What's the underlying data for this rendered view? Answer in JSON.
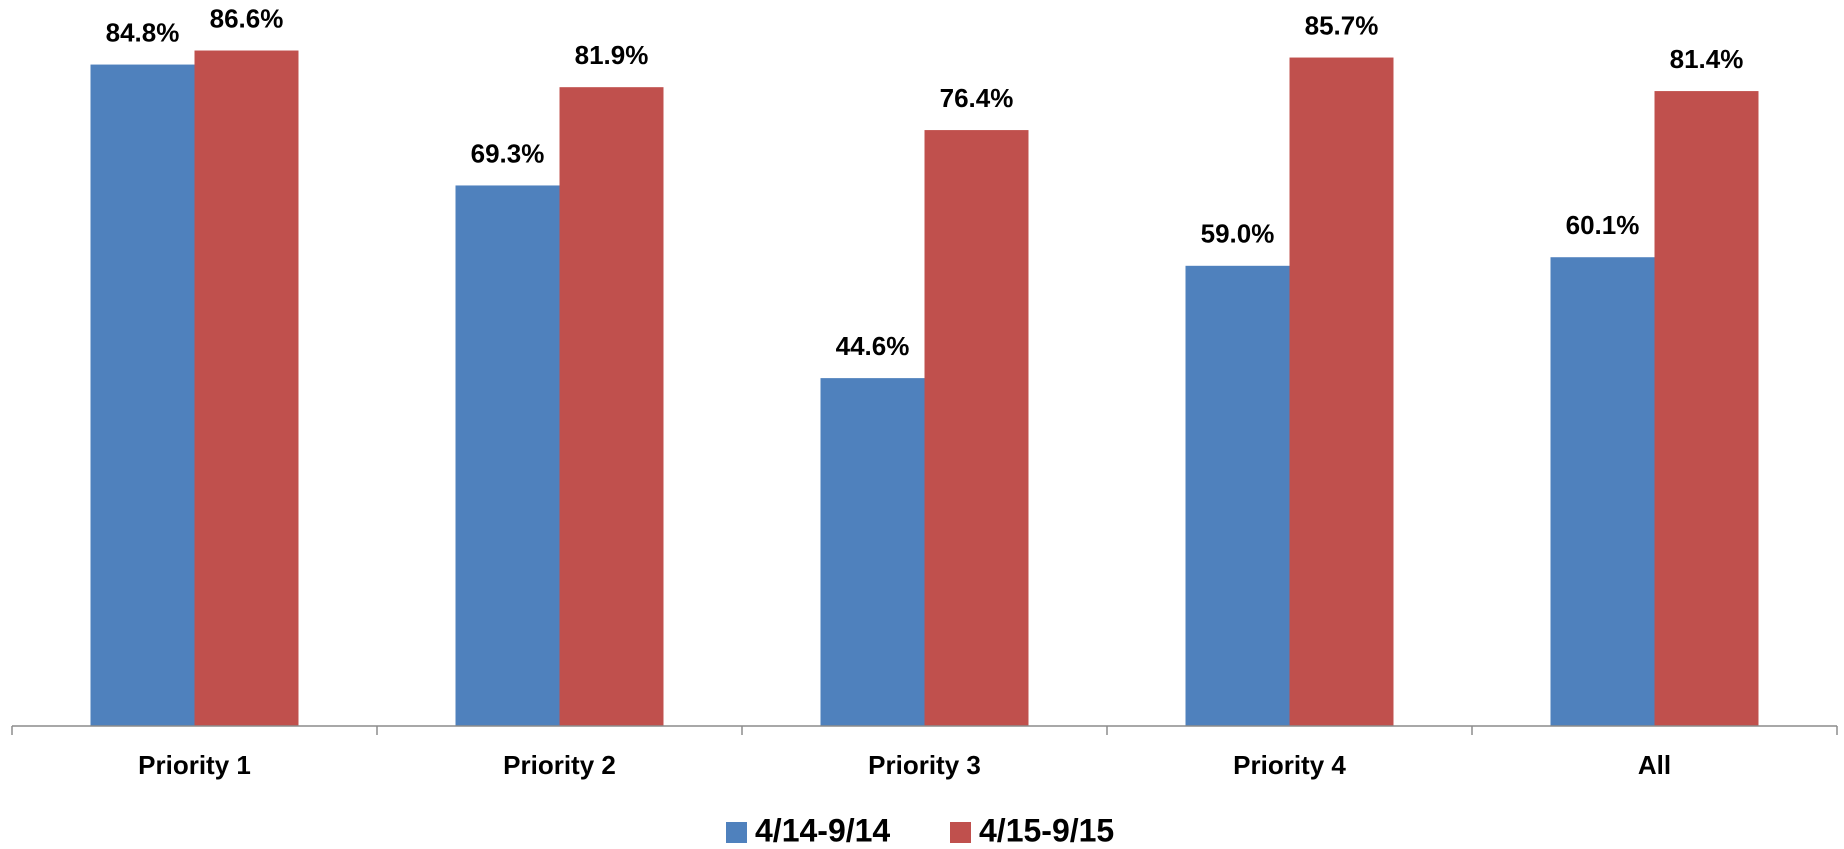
{
  "chart_data": {
    "type": "bar",
    "categories": [
      "Priority 1",
      "Priority 2",
      "Priority 3",
      "Priority 4",
      "All"
    ],
    "series": [
      {
        "name": "4/14-9/14",
        "color": "#4f81bd",
        "values": [
          84.8,
          69.3,
          44.6,
          59.0,
          60.1
        ],
        "value_labels": [
          "84.8%",
          "69.3%",
          "44.6%",
          "59.0%",
          "60.1%"
        ]
      },
      {
        "name": "4/15-9/15",
        "color": "#c0504d",
        "values": [
          86.6,
          81.9,
          76.4,
          85.7,
          81.4
        ],
        "value_labels": [
          "86.6%",
          "81.9%",
          "76.4%",
          "85.7%",
          "81.4%"
        ]
      }
    ],
    "ylim": [
      0,
      90
    ],
    "legend": "bottom"
  }
}
